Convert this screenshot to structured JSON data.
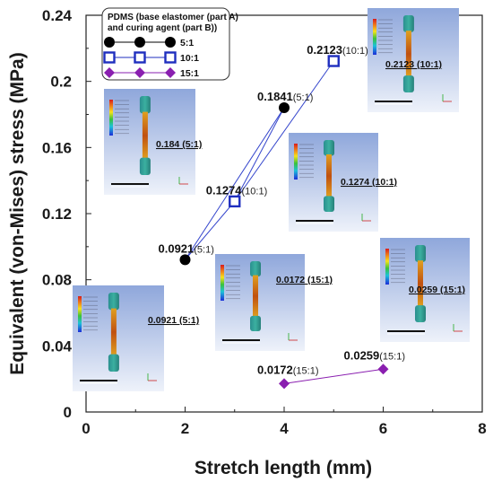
{
  "chart_data": {
    "type": "scatter",
    "xlabel": "Stretch length (mm)",
    "ylabel": "Equivalent (von-Mises) stress (MPa)",
    "xlim": [
      0,
      8
    ],
    "ylim": [
      0,
      0.24
    ],
    "x_ticks": [
      "0",
      "2",
      "4",
      "6",
      "8"
    ],
    "y_ticks": [
      "0",
      "0.04",
      "0.08",
      "0.12",
      "0.16",
      "0.2",
      "0.24"
    ],
    "grid": false,
    "legend": {
      "title": "PDMS (base elastomer (part A) and curing agent (part B))",
      "title_line1": "PDMS (base elastomer (part A)",
      "title_line2": "and curing agent (part B))",
      "position": "top-left"
    },
    "series": [
      {
        "name": "5:1",
        "color": "#000000",
        "marker": "circle",
        "points": [
          {
            "x": 2,
            "y": 0.0921,
            "value_label": "0.0921",
            "ratio_label": "(5:1)"
          },
          {
            "x": 4,
            "y": 0.1841,
            "value_label": "0.1841",
            "ratio_label": "(5:1)"
          }
        ]
      },
      {
        "name": "10:1",
        "color": "#1f2fbf",
        "marker": "square-open",
        "points": [
          {
            "x": 3,
            "y": 0.1274,
            "value_label": "0.1274",
            "ratio_label": "(10:1)"
          },
          {
            "x": 5,
            "y": 0.2123,
            "value_label": "0.2123",
            "ratio_label": "(10:1)"
          }
        ]
      },
      {
        "name": "15:1",
        "color": "#8a1fb0",
        "marker": "diamond",
        "points": [
          {
            "x": 4,
            "y": 0.0172,
            "value_label": "0.0172",
            "ratio_label": "(15:1)"
          },
          {
            "x": 6,
            "y": 0.0259,
            "value_label": "0.0259",
            "ratio_label": "(15:1)"
          }
        ]
      }
    ],
    "insets": [
      {
        "caption": "0.184 (5:1)"
      },
      {
        "caption": "0.2123 (10:1)"
      },
      {
        "caption": "0.1274 (10:1)"
      },
      {
        "caption": "0.0172 (15:1)"
      },
      {
        "caption": "0.0259 (15:1)"
      },
      {
        "caption": "0.0921 (5:1)"
      }
    ],
    "colors": {
      "line_5_10": "#3344cc",
      "inset_bg_top": "#9fb4e0",
      "inset_bg_bottom": "#e6ecf7"
    }
  }
}
